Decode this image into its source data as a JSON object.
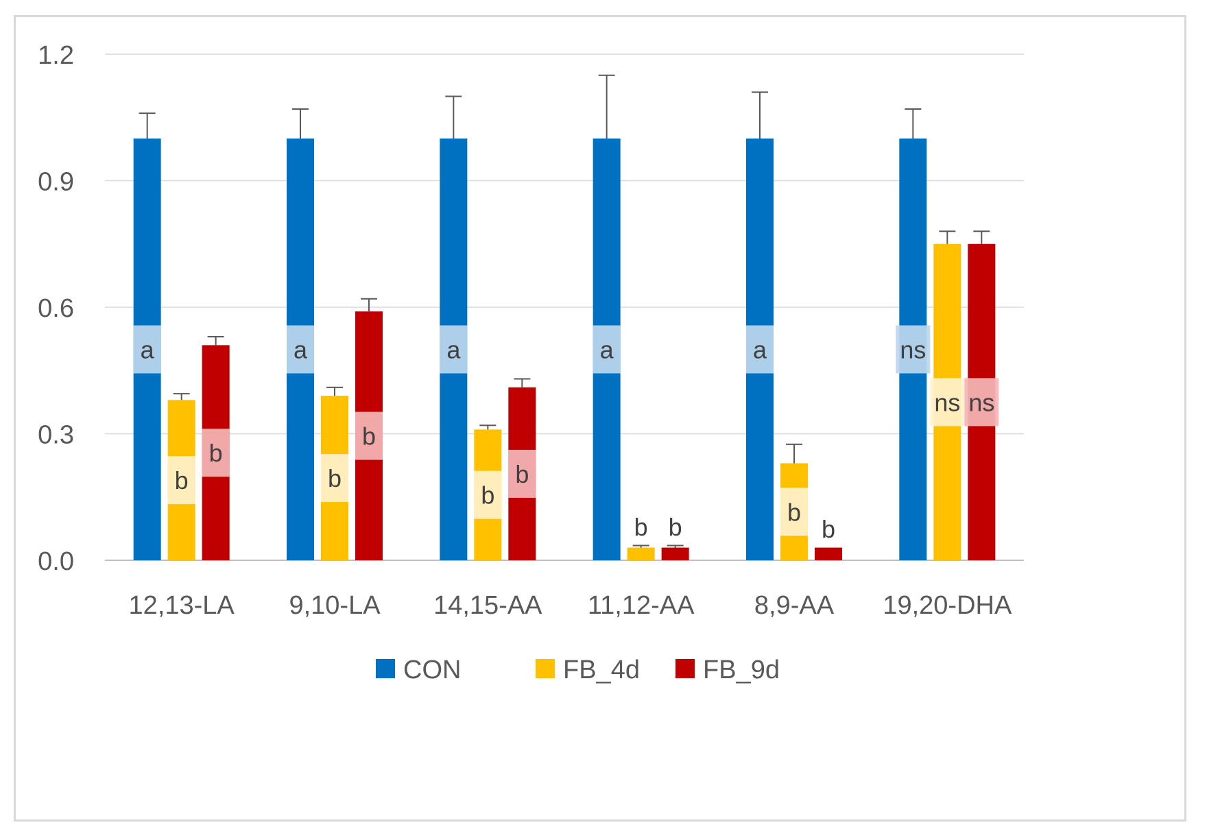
{
  "chart_data": {
    "type": "bar",
    "title": "",
    "xlabel": "",
    "ylabel": "",
    "ylim": [
      0,
      1.2
    ],
    "yticks": [
      "0.0",
      "0.3",
      "0.6",
      "0.9",
      "1.2"
    ],
    "ytick_values": [
      0,
      0.3,
      0.6,
      0.9,
      1.2
    ],
    "grid": true,
    "legend_position": "bottom",
    "categories": [
      "12,13-LA",
      "9,10-LA",
      "14,15-AA",
      "11,12-AA",
      "8,9-AA",
      "19,20-DHA"
    ],
    "series": [
      {
        "name": "CON",
        "color": "#0070c0",
        "label_bg": "#bdd7ee",
        "values": [
          1.0,
          1.0,
          1.0,
          1.0,
          1.0,
          1.0
        ],
        "errors": [
          0.06,
          0.07,
          0.1,
          0.15,
          0.11,
          0.07
        ],
        "labels": [
          "a",
          "a",
          "a",
          "a",
          "a",
          "ns"
        ],
        "label_y": [
          0.5,
          0.5,
          0.5,
          0.5,
          0.5,
          0.5
        ]
      },
      {
        "name": "FB_4d",
        "color": "#ffc000",
        "label_bg": "#fff2cc",
        "values": [
          0.38,
          0.39,
          0.31,
          0.03,
          0.23,
          0.75
        ],
        "errors": [
          0.015,
          0.02,
          0.01,
          0.005,
          0.045,
          0.03
        ],
        "labels": [
          "b",
          "b",
          "b",
          "b",
          "b",
          "ns"
        ],
        "label_y": [
          0.19,
          0.195,
          0.155,
          0.08,
          0.115,
          0.375
        ]
      },
      {
        "name": "FB_9d",
        "color": "#c00000",
        "label_bg": "#f4b6b6",
        "values": [
          0.51,
          0.59,
          0.41,
          0.03,
          0.03,
          0.75
        ],
        "errors": [
          0.02,
          0.03,
          0.02,
          0.005,
          0.0,
          0.03
        ],
        "labels": [
          "b",
          "b",
          "b",
          "b",
          "b",
          "ns"
        ],
        "label_y": [
          0.255,
          0.295,
          0.205,
          0.08,
          0.075,
          0.375
        ]
      }
    ]
  }
}
